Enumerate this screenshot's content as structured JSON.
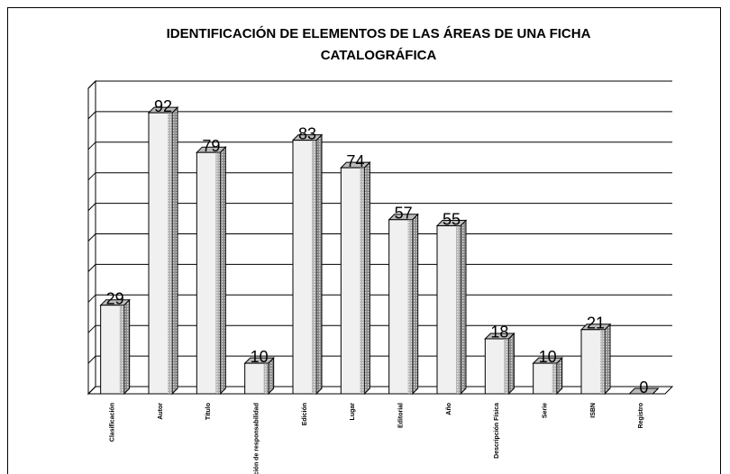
{
  "chart_data": {
    "type": "bar3d",
    "title": "IDENTIFICACIÓN DE ELEMENTOS DE LAS ÁREAS DE UNA FICHA CATALOGRÁFICA",
    "categories": [
      "Clasificación",
      "Autor",
      "Título",
      "Mención de responsabilidad",
      "Edición",
      "Lugar",
      "Editorial",
      "Año",
      "Descripción Física",
      "Serie",
      "ISBN",
      "Registro"
    ],
    "values": [
      29,
      92,
      79,
      10,
      83,
      74,
      57,
      55,
      18,
      10,
      21,
      0
    ],
    "color": "#f0f0f0",
    "ylim": [
      0,
      100
    ],
    "yticks": [
      0,
      10,
      20,
      30,
      40,
      50,
      60,
      70,
      80,
      90,
      100
    ],
    "grid": true
  }
}
